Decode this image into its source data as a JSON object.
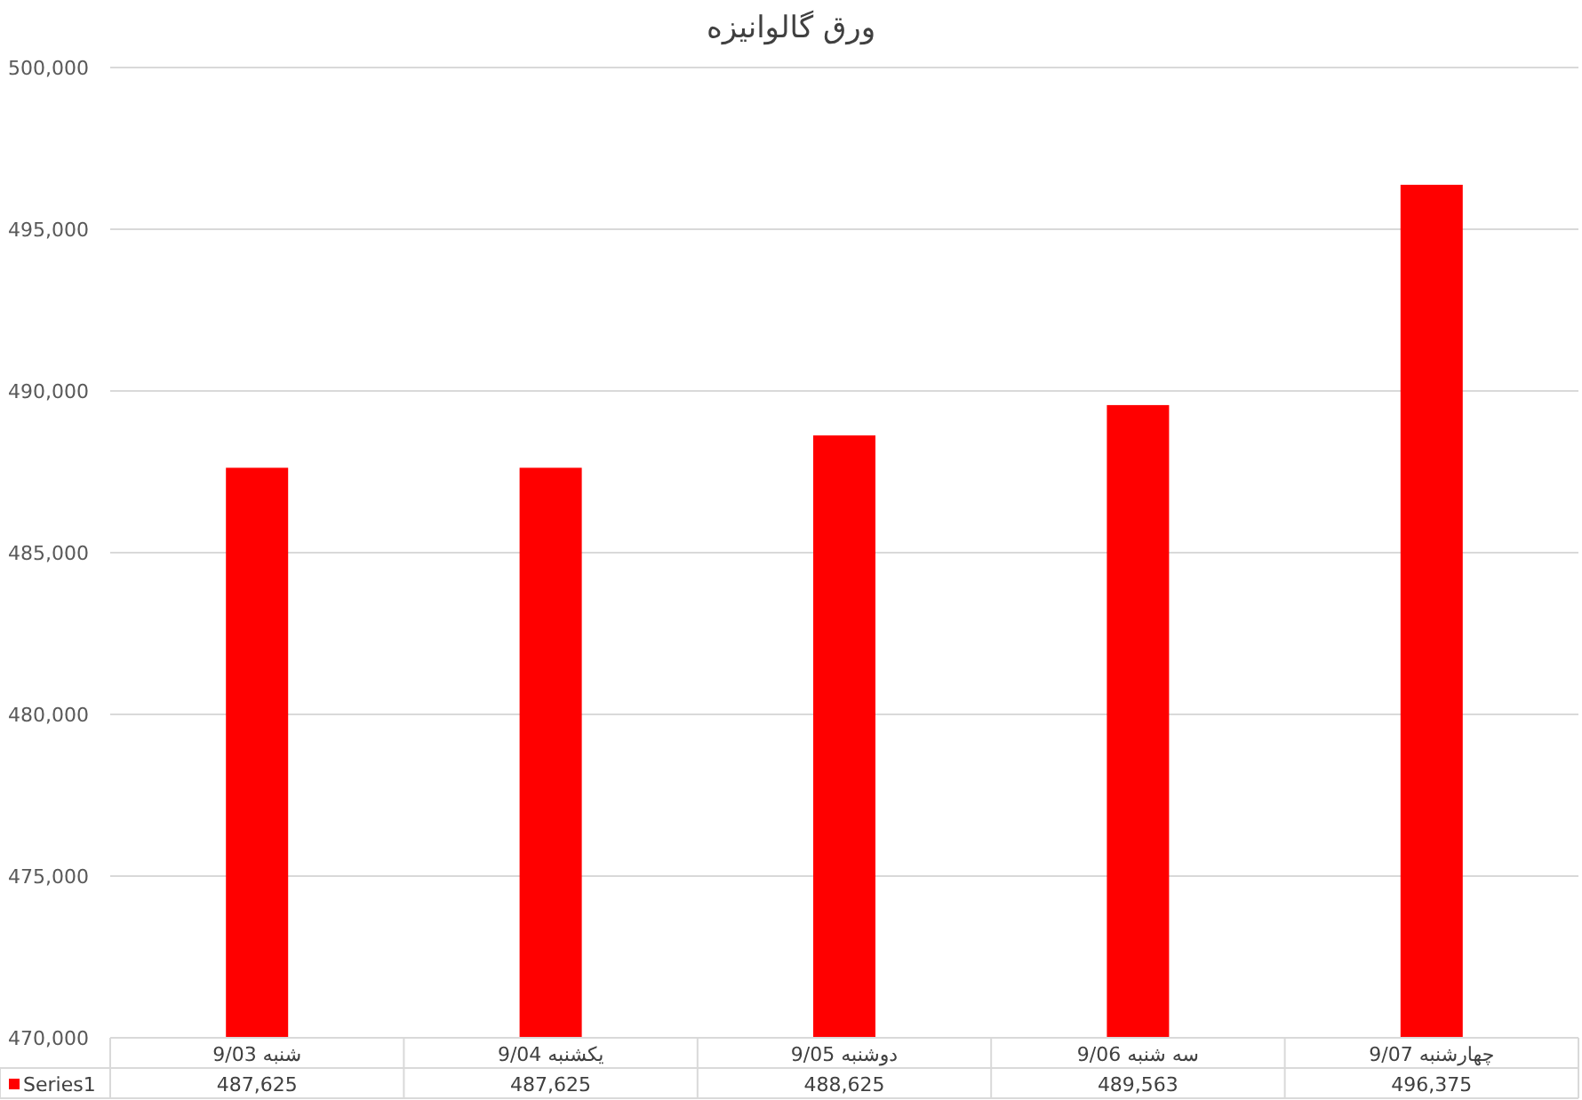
{
  "chart_data": {
    "type": "bar",
    "title": "ورق گالوانیزه",
    "categories": [
      "شنبه 9/03",
      "یکشنبه 9/04",
      "دوشنبه 9/05",
      "سه شنبه 9/06",
      "چهارشنبه 9/07"
    ],
    "series": [
      {
        "name": "Series1",
        "color": "#ff0000",
        "values": [
          487625,
          487625,
          488625,
          489563,
          496375
        ],
        "value_labels": [
          "487,625",
          "487,625",
          "488,625",
          "489,563",
          "496,375"
        ]
      }
    ],
    "ylim": [
      470000,
      500000
    ],
    "yticks": [
      {
        "value": 470000,
        "label": "470,000"
      },
      {
        "value": 475000,
        "label": "475,000"
      },
      {
        "value": 480000,
        "label": "480,000"
      },
      {
        "value": 485000,
        "label": "485,000"
      },
      {
        "value": 490000,
        "label": "490,000"
      },
      {
        "value": 495000,
        "label": "495,000"
      },
      {
        "value": 500000,
        "label": "500,000"
      }
    ],
    "grid": "y",
    "legend": "bottom"
  }
}
